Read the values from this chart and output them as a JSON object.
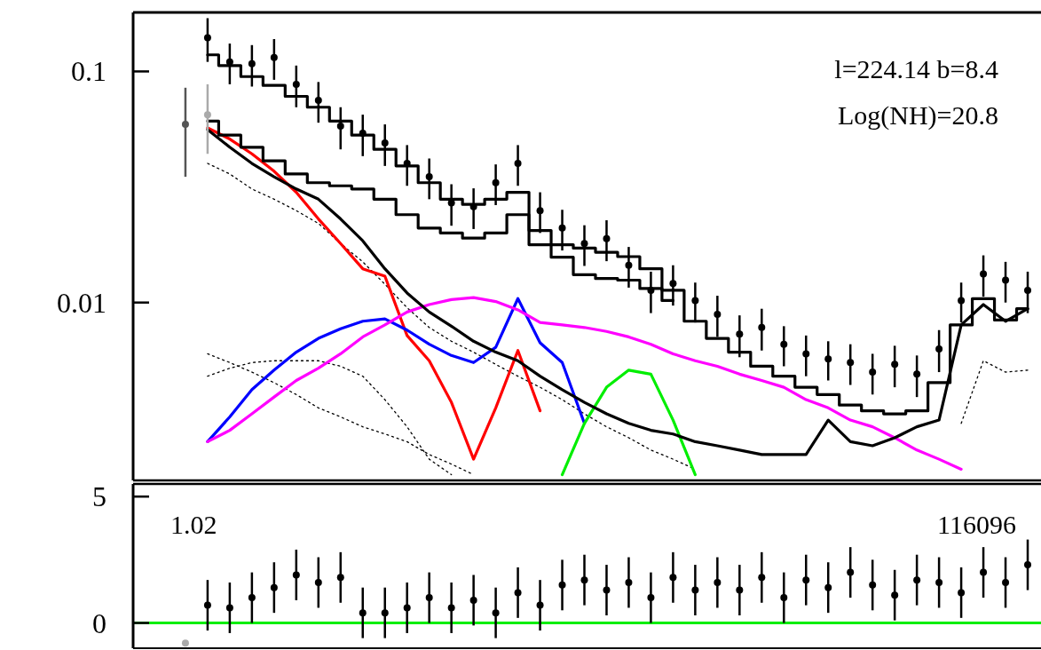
{
  "chart_data": [
    {
      "type": "line",
      "log": "y",
      "tick_labels": "y",
      "ylim": [
        0.0017,
        0.18
      ],
      "categories": [
        null,
        null,
        null,
        null,
        null,
        null,
        null,
        null,
        null,
        null,
        null,
        null,
        null,
        null,
        null,
        null,
        null,
        null,
        null,
        null,
        null,
        null,
        null,
        null,
        null,
        null,
        null,
        null,
        null,
        null,
        null,
        null,
        null,
        null,
        null,
        null,
        null,
        null,
        null
      ],
      "yticks": [
        0.01,
        0.1
      ],
      "annotations": [
        "l=224.14 b=8.4",
        "Log(NH)=20.8"
      ],
      "series": [
        {
          "type": "line",
          "color": "#000000",
          "line_style": "dotted",
          "values": [
            null,
            0.04,
            0.036,
            0.031,
            0.028,
            0.025,
            0.022,
            0.018,
            0.015,
            0.012,
            0.0095,
            0.0078,
            0.0068,
            0.0061,
            0.0054,
            0.0048,
            0.0043,
            0.0038,
            0.0033,
            0.0029,
            0.0026,
            0.0023,
            0.0021,
            0.0019,
            null,
            null,
            null,
            null,
            null,
            null,
            null,
            null,
            null,
            null,
            null,
            null,
            null,
            null,
            null
          ]
        },
        {
          "type": "line",
          "color": "#000000",
          "line_style": "dotted",
          "values": [
            null,
            0.006,
            0.0055,
            0.005,
            0.0045,
            0.004,
            0.0035,
            0.0032,
            0.0029,
            0.0027,
            0.0025,
            0.0022,
            0.002,
            0.0018,
            null,
            null,
            null,
            null,
            null,
            null,
            null,
            null,
            null,
            null,
            null,
            null,
            null,
            null,
            null,
            null,
            null,
            null,
            null,
            null,
            null,
            null,
            null,
            null,
            null
          ]
        },
        {
          "type": "line",
          "color": "#000000",
          "line_style": "dotted",
          "values": [
            null,
            0.0048,
            0.0052,
            0.0055,
            0.0056,
            0.0056,
            0.0056,
            0.0053,
            0.0048,
            0.0038,
            0.0029,
            0.0021,
            0.0018,
            null,
            null,
            null,
            null,
            null,
            null,
            null,
            null,
            null,
            null,
            null,
            null,
            null,
            null,
            null,
            null,
            null,
            null,
            null,
            null,
            null,
            null,
            null,
            null,
            null,
            null
          ]
        },
        {
          "type": "line",
          "color": "#000000",
          "line_style": "dotted",
          "values": [
            null,
            null,
            null,
            null,
            null,
            null,
            null,
            null,
            null,
            null,
            null,
            null,
            null,
            null,
            null,
            null,
            null,
            null,
            null,
            null,
            null,
            null,
            null,
            null,
            null,
            null,
            null,
            null,
            null,
            null,
            null,
            null,
            null,
            null,
            null,
            0.003,
            0.0056,
            0.005,
            0.0051
          ]
        },
        {
          "type": "line",
          "color": "#ff0000",
          "values": [
            null,
            0.057,
            0.051,
            0.044,
            0.037,
            0.03,
            0.023,
            0.018,
            0.014,
            0.013,
            0.0072,
            0.0056,
            0.0037,
            0.0021,
            0.0035,
            0.0062,
            0.0034,
            null,
            null,
            null,
            null,
            null,
            null,
            null,
            null,
            null,
            null,
            null,
            null,
            null,
            null,
            null,
            null,
            null,
            null,
            null,
            null,
            null,
            null
          ]
        },
        {
          "type": "line",
          "color": "#0000ff",
          "values": [
            null,
            0.0025,
            0.0032,
            0.0042,
            0.0051,
            0.0061,
            0.007,
            0.0077,
            0.0083,
            0.0085,
            0.0076,
            0.0066,
            0.0059,
            0.0055,
            0.0064,
            0.0104,
            0.0067,
            0.0055,
            0.003,
            null,
            null,
            null,
            null,
            null,
            null,
            null,
            null,
            null,
            null,
            null,
            null,
            null,
            null,
            null,
            null,
            null,
            null,
            null,
            null
          ]
        },
        {
          "type": "line",
          "color": "#ff00ff",
          "values": [
            null,
            0.0025,
            0.0028,
            0.0033,
            0.0039,
            0.0046,
            0.0052,
            0.006,
            0.0071,
            0.008,
            0.0091,
            0.0098,
            0.0103,
            0.0105,
            0.0101,
            0.0093,
            0.0082,
            0.008,
            0.0078,
            0.0075,
            0.0071,
            0.0066,
            0.006,
            0.0056,
            0.0053,
            0.0049,
            0.0046,
            0.0043,
            0.0038,
            0.0035,
            0.0031,
            0.0029,
            0.0026,
            0.0023,
            0.0021,
            0.0019,
            null,
            null,
            null
          ]
        },
        {
          "type": "line",
          "color": "#00ee00",
          "values": [
            null,
            null,
            null,
            null,
            null,
            null,
            null,
            null,
            null,
            null,
            null,
            null,
            null,
            null,
            null,
            null,
            null,
            0.0018,
            0.003,
            0.0043,
            0.0051,
            0.0049,
            0.0031,
            0.0018,
            null,
            null,
            null,
            null,
            null,
            null,
            null,
            null,
            null,
            null,
            null,
            null,
            null,
            null,
            null
          ]
        },
        {
          "type": "line",
          "color": "#000000",
          "values": [
            null,
            0.056,
            0.047,
            0.04,
            0.035,
            0.031,
            0.028,
            0.023,
            0.0185,
            0.014,
            0.011,
            0.0091,
            0.0079,
            0.0068,
            0.0061,
            0.0056,
            0.0048,
            0.0042,
            0.0037,
            0.0033,
            0.003,
            0.0028,
            0.0027,
            0.0025,
            0.0024,
            0.0023,
            0.0022,
            0.0022,
            0.0022,
            0.0031,
            0.0025,
            0.0024,
            0.0026,
            0.0029,
            0.0031,
            0.008,
            0.0098,
            0.0083,
            0.0094
          ]
        },
        {
          "type": "step",
          "color": "#000000",
          "values": [
            null,
            0.061,
            0.053,
            0.047,
            0.041,
            0.036,
            0.033,
            0.032,
            0.031,
            0.028,
            0.024,
            0.021,
            0.02,
            0.019,
            0.02,
            0.024,
            0.0178,
            0.0157,
            0.0132,
            0.0127,
            0.0125,
            0.0115,
            0.0102,
            null,
            null,
            null,
            null,
            null,
            null,
            null,
            null,
            null,
            null,
            null,
            null,
            null,
            null,
            null,
            null
          ]
        },
        {
          "type": "step",
          "color": "#000000",
          "values": [
            null,
            0.118,
            0.106,
            0.095,
            0.087,
            0.078,
            0.07,
            0.061,
            0.053,
            0.046,
            0.039,
            0.033,
            0.028,
            0.0266,
            0.028,
            0.03,
            0.0205,
            0.0178,
            0.0172,
            0.0165,
            0.0158,
            0.014,
            0.0113,
            0.0083,
            0.007,
            0.0061,
            0.0053,
            0.0048,
            0.0043,
            0.004,
            0.0036,
            0.0034,
            0.0033,
            0.0034,
            0.0045,
            0.008,
            0.0104,
            0.0084,
            0.0094
          ]
        },
        {
          "type": "scatter",
          "color": "#555555",
          "marker": "circle",
          "values": [
            0.059,
            null,
            null,
            null,
            null,
            null,
            null,
            null,
            null,
            null,
            null,
            null,
            null,
            null,
            null,
            null,
            null,
            null,
            null,
            null,
            null,
            null,
            null,
            null,
            null,
            null,
            null,
            null,
            null,
            null,
            null,
            null,
            null,
            null,
            null,
            null,
            null,
            null,
            null
          ],
          "errors": [
            [
              0.035,
              0.085
            ],
            null,
            null,
            null,
            null,
            null,
            null,
            null,
            null,
            null,
            null,
            null,
            null,
            null,
            null,
            null,
            null,
            null,
            null,
            null,
            null,
            null,
            null,
            null,
            null,
            null,
            null,
            null,
            null,
            null,
            null,
            null,
            null,
            null,
            null,
            null,
            null,
            null,
            null
          ]
        },
        {
          "type": "scatter",
          "color": "#aaaaaa",
          "marker": "circle",
          "values": [
            null,
            0.065,
            null,
            null,
            null,
            null,
            null,
            null,
            null,
            null,
            null,
            null,
            null,
            null,
            null,
            null,
            null,
            null,
            null,
            null,
            null,
            null,
            null,
            null,
            null,
            null,
            null,
            null,
            null,
            null,
            null,
            null,
            null,
            null,
            null,
            null,
            null,
            null,
            null
          ],
          "errors": [
            null,
            [
              0.044,
              0.088
            ],
            null,
            null,
            null,
            null,
            null,
            null,
            null,
            null,
            null,
            null,
            null,
            null,
            null,
            null,
            null,
            null,
            null,
            null,
            null,
            null,
            null,
            null,
            null,
            null,
            null,
            null,
            null,
            null,
            null,
            null,
            null,
            null,
            null,
            null,
            null,
            null,
            null
          ]
        },
        {
          "type": "scatter",
          "color": "#000000",
          "marker": "circle",
          "values": [
            null,
            0.14,
            0.11,
            0.108,
            0.115,
            0.088,
            0.075,
            0.058,
            0.054,
            0.049,
            0.04,
            0.035,
            0.027,
            0.026,
            0.033,
            0.04,
            0.025,
            0.021,
            0.018,
            0.0189,
            0.0145,
            0.0113,
            0.0121,
            0.0102,
            0.0089,
            0.0073,
            0.0078,
            0.0066,
            0.006,
            0.0057,
            0.0055,
            0.005,
            0.0054,
            0.0049,
            0.0063,
            0.0102,
            0.0133,
            0.0125,
            0.0113
          ],
          "errors": [
            null,
            0.03,
            0.022,
            0.022,
            0.023,
            0.018,
            0.015,
            0.012,
            0.011,
            0.01,
            0.008,
            0.007,
            0.0055,
            0.0052,
            0.0066,
            0.008,
            0.005,
            0.0042,
            0.0036,
            0.0038,
            0.0029,
            0.0023,
            0.0024,
            0.002,
            0.0018,
            0.0015,
            0.0016,
            0.0013,
            0.0012,
            0.0011,
            0.0011,
            0.001,
            0.0011,
            0.001,
            0.0013,
            0.002,
            0.0027,
            0.0025,
            0.0023
          ]
        }
      ]
    },
    {
      "type": "scatter",
      "tick_labels": "y",
      "ylim": [
        -1,
        5.5
      ],
      "categories": [
        null,
        null,
        null,
        null,
        null,
        null,
        null,
        null,
        null,
        null,
        null,
        null,
        null,
        null,
        null,
        null,
        null,
        null,
        null,
        null,
        null,
        null,
        null,
        null,
        null,
        null,
        null,
        null,
        null,
        null,
        null,
        null,
        null,
        null,
        null,
        null,
        null,
        null,
        null
      ],
      "yticks": [
        0,
        5
      ],
      "annotations": [
        "1.02",
        "116096"
      ],
      "ref_lines": [
        {
          "axis": "y",
          "value": 0,
          "color": "#00ee00"
        }
      ],
      "series": [
        {
          "color": "#aaaaaa",
          "marker": "circle",
          "values": [
            -0.8,
            null,
            null,
            null,
            null,
            null,
            null,
            null,
            null,
            null,
            null,
            null,
            null,
            null,
            null,
            null,
            null,
            null,
            null,
            null,
            null,
            null,
            null,
            null,
            null,
            null,
            null,
            null,
            null,
            null,
            null,
            null,
            null,
            null,
            null,
            null,
            null,
            null,
            null
          ]
        },
        {
          "color": "#000000",
          "marker": "circle",
          "values": [
            null,
            0.7,
            0.6,
            1.0,
            1.4,
            1.9,
            1.6,
            1.8,
            0.4,
            0.4,
            0.6,
            1.0,
            0.6,
            0.9,
            0.4,
            1.2,
            0.7,
            1.5,
            1.7,
            1.3,
            1.6,
            1.0,
            1.8,
            1.3,
            1.6,
            1.3,
            1.8,
            1.0,
            1.7,
            1.4,
            2.0,
            1.5,
            1.1,
            1.7,
            1.6,
            1.2,
            2.0,
            1.6,
            2.3
          ],
          "errors": [
            null,
            1,
            1,
            1,
            1,
            1,
            1,
            1,
            1,
            1,
            1,
            1,
            1,
            1,
            1,
            1,
            1,
            1,
            1,
            1,
            1,
            1,
            1,
            1,
            1,
            1,
            1,
            1,
            1,
            1,
            1,
            1,
            1,
            1,
            1,
            1,
            1,
            1,
            1
          ]
        }
      ]
    }
  ]
}
